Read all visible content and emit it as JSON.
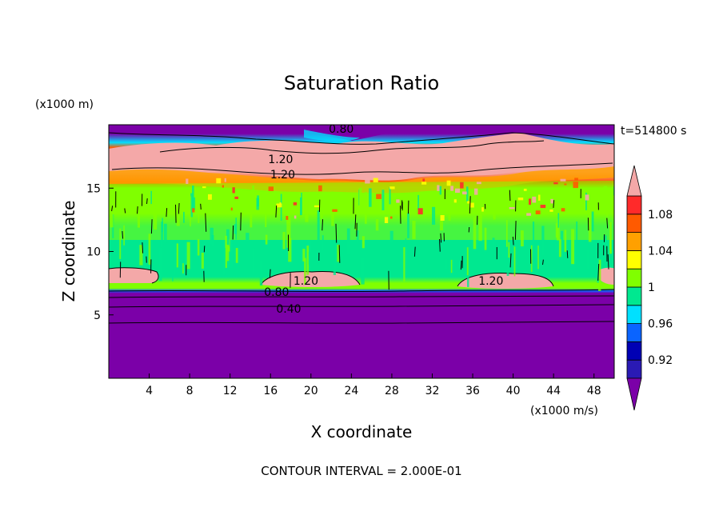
{
  "chart_data": {
    "type": "heatmap",
    "title": "Saturation Ratio",
    "xlabel": "X coordinate",
    "ylabel": "Z coordinate",
    "x_units": "(x1000 m/s)",
    "y_units": "(x1000 m)",
    "time_label": "t=514800 s",
    "footer": "CONTOUR INTERVAL = 2.000E-01",
    "xlim": [
      0,
      50
    ],
    "ylim": [
      0,
      20
    ],
    "x_ticks": [
      4,
      8,
      12,
      16,
      20,
      24,
      28,
      32,
      36,
      40,
      44,
      48
    ],
    "y_ticks": [
      5,
      10,
      15
    ],
    "contour_interval": 0.2,
    "colorbar": {
      "labels": [
        "0.92",
        "0.96",
        "1",
        "1.04",
        "1.08"
      ],
      "levels": [
        0.9,
        0.92,
        0.94,
        0.96,
        0.98,
        1.0,
        1.02,
        1.04,
        1.06,
        1.08,
        1.1
      ],
      "colors": [
        "#7b00a8",
        "#2a1ab4",
        "#0000b4",
        "#0a64ff",
        "#00e0ff",
        "#00e890",
        "#80ff00",
        "#ffff00",
        "#ffa000",
        "#ff5a00",
        "#ff2a2a",
        "#f4a8a8"
      ]
    },
    "contour_labels": [
      {
        "text": "0.80",
        "x": 23,
        "z": 19.7
      },
      {
        "text": "1.20",
        "x": 17,
        "z": 17.3
      },
      {
        "text": "1.20",
        "x": 17.2,
        "z": 16.1
      },
      {
        "text": "1.20",
        "x": 19.5,
        "z": 7.7
      },
      {
        "text": "1.20",
        "x": 37.8,
        "z": 7.7
      },
      {
        "text": "0.80",
        "x": 16.6,
        "z": 6.8
      },
      {
        "text": "0.40",
        "x": 17.8,
        "z": 5.5
      }
    ]
  }
}
